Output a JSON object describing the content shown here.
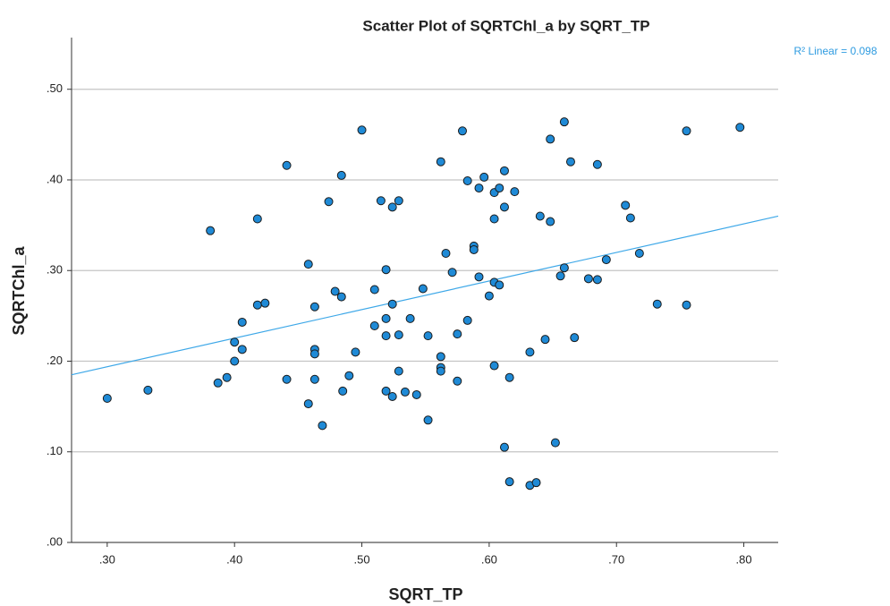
{
  "chart_data": {
    "type": "scatter",
    "title": "Scatter Plot of SQRTChl_a by SQRT_TP",
    "x_label": "SQRT_TP",
    "y_label": "SQRTChl_a",
    "annotation": "R² Linear = 0.098",
    "color": "#1f8ad6",
    "fit_color": "#3ea8e8",
    "grid": true,
    "xlim": [
      0.272,
      0.827
    ],
    "ylim": [
      0,
      0.557
    ],
    "xticks": [
      {
        "value": 0.3,
        "label": ".30"
      },
      {
        "value": 0.4,
        "label": ".40"
      },
      {
        "value": 0.5,
        "label": ".50"
      },
      {
        "value": 0.6,
        "label": ".60"
      },
      {
        "value": 0.7,
        "label": ".70"
      },
      {
        "value": 0.8,
        "label": ".80"
      }
    ],
    "yticks": [
      {
        "value": 0,
        "label": ".00"
      },
      {
        "value": 0.1,
        "label": ".10"
      },
      {
        "value": 0.2,
        "label": ".20"
      },
      {
        "value": 0.3,
        "label": ".30"
      },
      {
        "value": 0.4,
        "label": ".40"
      },
      {
        "value": 0.5,
        "label": ".50"
      }
    ],
    "fit_line": {
      "x": [
        0.272,
        0.827
      ],
      "y": [
        0.185,
        0.36
      ]
    },
    "x": [
      0.3,
      0.332,
      0.381,
      0.387,
      0.394,
      0.4,
      0.4,
      0.406,
      0.406,
      0.418,
      0.418,
      0.424,
      0.441,
      0.441,
      0.458,
      0.458,
      0.463,
      0.463,
      0.463,
      0.463,
      0.469,
      0.474,
      0.479,
      0.484,
      0.484,
      0.485,
      0.49,
      0.495,
      0.5,
      0.51,
      0.51,
      0.515,
      0.519,
      0.519,
      0.519,
      0.519,
      0.524,
      0.524,
      0.524,
      0.529,
      0.529,
      0.529,
      0.534,
      0.538,
      0.543,
      0.548,
      0.552,
      0.552,
      0.562,
      0.562,
      0.562,
      0.562,
      0.566,
      0.571,
      0.575,
      0.575,
      0.579,
      0.583,
      0.583,
      0.588,
      0.588,
      0.592,
      0.592,
      0.596,
      0.6,
      0.604,
      0.608,
      0.612,
      0.612,
      0.62,
      0.604,
      0.604,
      0.608,
      0.604,
      0.612,
      0.616,
      0.616,
      0.632,
      0.632,
      0.637,
      0.64,
      0.644,
      0.648,
      0.648,
      0.652,
      0.656,
      0.659,
      0.659,
      0.664,
      0.667,
      0.678,
      0.685,
      0.685,
      0.692,
      0.707,
      0.711,
      0.718,
      0.732,
      0.755,
      0.755,
      0.797
    ],
    "y": [
      0.159,
      0.168,
      0.344,
      0.176,
      0.182,
      0.2,
      0.221,
      0.213,
      0.243,
      0.357,
      0.262,
      0.264,
      0.416,
      0.18,
      0.307,
      0.153,
      0.26,
      0.213,
      0.208,
      0.18,
      0.129,
      0.376,
      0.277,
      0.405,
      0.271,
      0.167,
      0.184,
      0.21,
      0.455,
      0.279,
      0.239,
      0.377,
      0.301,
      0.247,
      0.228,
      0.167,
      0.37,
      0.263,
      0.161,
      0.377,
      0.229,
      0.189,
      0.166,
      0.247,
      0.163,
      0.28,
      0.228,
      0.135,
      0.42,
      0.205,
      0.193,
      0.189,
      0.319,
      0.298,
      0.23,
      0.178,
      0.454,
      0.399,
      0.245,
      0.327,
      0.323,
      0.391,
      0.293,
      0.403,
      0.272,
      0.386,
      0.391,
      0.41,
      0.37,
      0.387,
      0.357,
      0.287,
      0.284,
      0.195,
      0.105,
      0.182,
      0.067,
      0.21,
      0.063,
      0.066,
      0.36,
      0.224,
      0.445,
      0.354,
      0.11,
      0.294,
      0.464,
      0.303,
      0.42,
      0.226,
      0.291,
      0.417,
      0.29,
      0.312,
      0.372,
      0.358,
      0.319,
      0.263,
      0.454,
      0.262,
      0.458
    ]
  }
}
